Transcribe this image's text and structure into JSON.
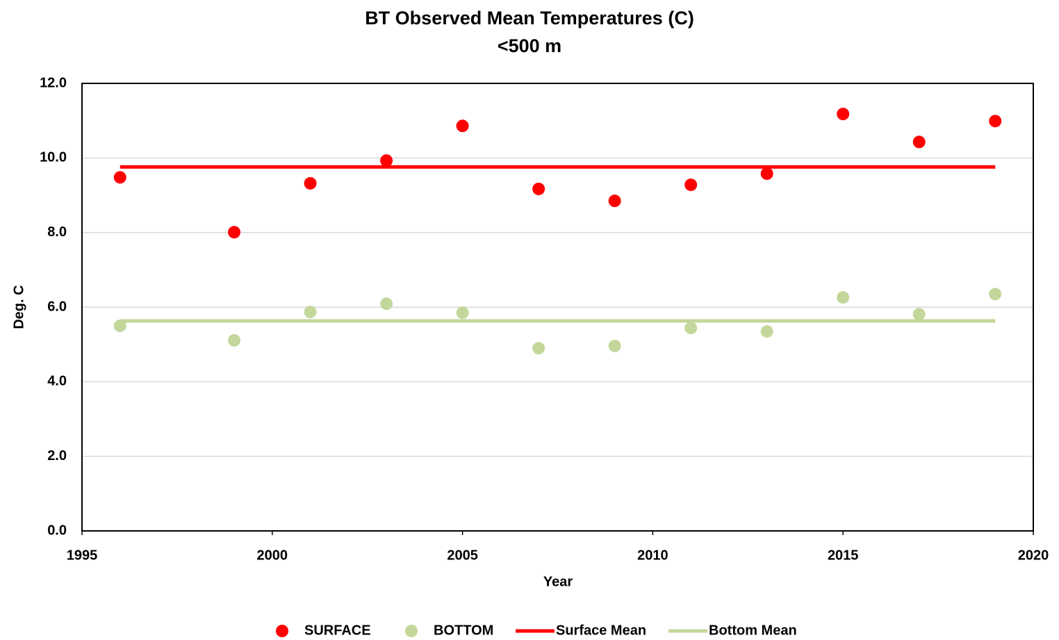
{
  "chart_data": {
    "type": "scatter",
    "title": "BT Observed Mean Temperatures (C)",
    "subtitle": "<500 m",
    "x_label": "Year",
    "y_label": "Deg. C",
    "xlim": [
      1995,
      2020
    ],
    "xticks": [
      1995,
      2000,
      2005,
      2010,
      2015,
      2020
    ],
    "ylim": [
      0,
      12
    ],
    "yticks": [
      {
        "value": 0,
        "label": "0.0"
      },
      {
        "value": 2,
        "label": "2.0"
      },
      {
        "value": 4,
        "label": "4.0"
      },
      {
        "value": 6,
        "label": "6.0"
      },
      {
        "value": 8,
        "label": "8.0"
      },
      {
        "value": 10,
        "label": "10.0"
      },
      {
        "value": 12,
        "label": "12.0"
      }
    ],
    "grid": true,
    "legend": "bottom",
    "series": [
      {
        "name": "SURFACE",
        "color": "#ff0000",
        "style": "markers",
        "x": [
          1996,
          1999,
          2001,
          2003,
          2005,
          2007,
          2009,
          2011,
          2013,
          2015,
          2017,
          2019
        ],
        "values": [
          9.48,
          8.01,
          9.32,
          9.93,
          10.86,
          9.17,
          8.85,
          9.28,
          9.58,
          11.18,
          10.43,
          10.99
        ]
      },
      {
        "name": "BOTTOM",
        "color": "#c4d79b",
        "style": "markers",
        "x": [
          1996,
          1999,
          2001,
          2003,
          2005,
          2007,
          2009,
          2011,
          2013,
          2015,
          2017,
          2019
        ],
        "values": [
          5.5,
          5.11,
          5.87,
          6.09,
          5.85,
          4.9,
          4.96,
          5.44,
          5.35,
          6.26,
          5.81,
          6.35
        ]
      },
      {
        "name": "Surface Mean",
        "color": "#ff0000",
        "style": "line",
        "x": [
          1996,
          2019
        ],
        "values": [
          9.76,
          9.76
        ]
      },
      {
        "name": "Bottom Mean",
        "color": "#c4d79b",
        "style": "line",
        "x": [
          1996,
          2019
        ],
        "values": [
          5.63,
          5.63
        ]
      }
    ]
  }
}
